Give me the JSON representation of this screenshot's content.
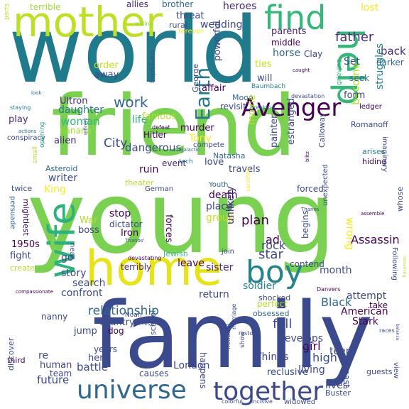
{
  "colors": {
    "viridis": [
      "#440154",
      "#482878",
      "#3e4989",
      "#31688e",
      "#26828e",
      "#1f9e89",
      "#35b779",
      "#6ece58",
      "#b5de2b",
      "#fde725"
    ]
  },
  "words": [
    {
      "text": "young",
      "color": "#7ad151"
    },
    {
      "text": "friend",
      "color": "#7ad151"
    },
    {
      "text": "world",
      "color": "#1f7a8c"
    },
    {
      "text": "family",
      "color": "#3b4a8c"
    },
    {
      "text": "home",
      "color": "#e6e419"
    },
    {
      "text": "mother",
      "color": "#bddf26"
    },
    {
      "text": "help",
      "color": "#35b779"
    },
    {
      "text": "wife",
      "color": "#2db27d"
    },
    {
      "text": "find",
      "color": "#35b779"
    },
    {
      "text": "boy",
      "color": "#26828e"
    },
    {
      "text": "universe",
      "color": "#31688e"
    },
    {
      "text": "together",
      "color": "#3e4989"
    },
    {
      "text": "Avenger",
      "color": "#440154"
    },
    {
      "text": "Earth",
      "color": "#2a788e"
    },
    {
      "text": "relationship",
      "color": "#31688e"
    },
    {
      "text": "father",
      "color": "#472d7b"
    },
    {
      "text": "heroes",
      "color": "#482878"
    },
    {
      "text": "back",
      "color": "#482878"
    },
    {
      "text": "become",
      "color": "#b5de2b"
    },
    {
      "text": "struggles",
      "color": "#26828e"
    },
    {
      "text": "terrible",
      "color": "#a0da39"
    },
    {
      "text": "allies",
      "color": "#482878"
    },
    {
      "text": "brother",
      "color": "#31688e"
    },
    {
      "text": "threat",
      "color": "#3e4989"
    },
    {
      "text": "lost",
      "color": "#fde725"
    },
    {
      "text": "darker",
      "color": "#31688e"
    },
    {
      "text": "parts",
      "color": "#c2df23"
    },
    {
      "text": "willing",
      "color": "#8fd744"
    },
    {
      "text": "rural",
      "color": "#3e4989"
    },
    {
      "text": "forever",
      "color": "#fde725"
    },
    {
      "text": "wedding",
      "color": "#3e4989"
    },
    {
      "text": "parents",
      "color": "#482878"
    },
    {
      "text": "middle",
      "color": "#440154"
    },
    {
      "text": "Set",
      "color": "#3e4989"
    },
    {
      "text": "seek",
      "color": "#31688e"
    },
    {
      "text": "horse",
      "color": "#31688e"
    },
    {
      "text": "powerful",
      "color": "#3e4989"
    },
    {
      "text": "life",
      "color": "#2db27d"
    },
    {
      "text": "ties",
      "color": "#c8e020"
    },
    {
      "text": "will",
      "color": "#3e4989"
    },
    {
      "text": "affair",
      "color": "#440154"
    },
    {
      "text": "order",
      "color": "#c8e020"
    },
    {
      "text": "away",
      "color": "#3e4989"
    },
    {
      "text": "caught",
      "color": "#440154"
    },
    {
      "text": "Clay",
      "color": "#3e4989"
    },
    {
      "text": "grieving",
      "color": "#35b779"
    },
    {
      "text": "Baumbach",
      "color": "#26828e"
    },
    {
      "text": "form",
      "color": "#3e4989"
    },
    {
      "text": "ledger",
      "color": "#440154"
    },
    {
      "text": "look",
      "color": "#31688e"
    },
    {
      "text": "stargazing",
      "color": "#3e4989"
    },
    {
      "text": "George",
      "color": "#3e4989"
    },
    {
      "text": "Moon",
      "color": "#31688e"
    },
    {
      "text": "devastation",
      "color": "#3e4989"
    },
    {
      "text": "breaking",
      "color": "#2a788e"
    },
    {
      "text": "revisit",
      "color": "#3e4989"
    },
    {
      "text": "Ultron",
      "color": "#482878"
    },
    {
      "text": "work",
      "color": "#31688e"
    },
    {
      "text": "daughter",
      "color": "#2a788e"
    },
    {
      "text": "famous",
      "color": "#b5de2b"
    },
    {
      "text": "woman",
      "color": "#35b779"
    },
    {
      "text": "banana",
      "color": "#a0da39"
    },
    {
      "text": "alien",
      "color": "#482878"
    },
    {
      "text": "City",
      "color": "#3e4989"
    },
    {
      "text": "dangerous",
      "color": "#3e4989"
    },
    {
      "text": "murder",
      "color": "#440154"
    },
    {
      "text": "Tony",
      "color": "#fde725"
    },
    {
      "text": "compete",
      "color": "#3e4989"
    },
    {
      "text": "galactic",
      "color": "#31688e"
    },
    {
      "text": "tech",
      "color": "#26828e"
    },
    {
      "text": "event",
      "color": "#482878"
    },
    {
      "text": "Natasha",
      "color": "#31688e"
    },
    {
      "text": "love",
      "color": "#3e4989"
    },
    {
      "text": "movie",
      "color": "#b5de2b"
    },
    {
      "text": "travels",
      "color": "#3e4989"
    },
    {
      "text": "Romanoff",
      "color": "#3e4989"
    },
    {
      "text": "arises",
      "color": "#26828e"
    },
    {
      "text": "hiding",
      "color": "#440154"
    },
    {
      "text": "imaginary",
      "color": "#3e4989"
    },
    {
      "text": "staying",
      "color": "#2a788e"
    },
    {
      "text": "play",
      "color": "#482878"
    },
    {
      "text": "actions",
      "color": "#31688e"
    },
    {
      "text": "conspiracy",
      "color": "#3e4989"
    },
    {
      "text": "defeat",
      "color": "#440154"
    },
    {
      "text": "Hitler",
      "color": "#440154"
    },
    {
      "text": "Infinity",
      "color": "#3e4989"
    },
    {
      "text": "small",
      "color": "#b5de2b"
    },
    {
      "text": "opening",
      "color": "#1f9e89"
    },
    {
      "text": "Asteroid",
      "color": "#31688e"
    },
    {
      "text": "writer",
      "color": "#3e4989"
    },
    {
      "text": "ruin",
      "color": "#440154"
    },
    {
      "text": "theater",
      "color": "#b5de2b"
    },
    {
      "text": "painter",
      "color": "#3e4989"
    },
    {
      "text": "estranged",
      "color": "#3e4989"
    },
    {
      "text": "blitz",
      "color": "#440154"
    },
    {
      "text": "Calloway",
      "color": "#3e4989"
    },
    {
      "text": "King",
      "color": "#fde725"
    },
    {
      "text": "twice",
      "color": "#3e4989"
    },
    {
      "text": "German",
      "color": "#3e4989"
    },
    {
      "text": "Youth",
      "color": "#31688e"
    },
    {
      "text": "forced",
      "color": "#3e4989"
    },
    {
      "text": "persuade",
      "color": "#31688e"
    },
    {
      "text": "mightiest",
      "color": "#440154"
    },
    {
      "text": "death",
      "color": "#440154"
    },
    {
      "text": "place",
      "color": "#3e4989"
    },
    {
      "text": "group",
      "color": "#c8e020"
    },
    {
      "text": "Thanos",
      "color": "#3e4989"
    },
    {
      "text": "Thanos'",
      "color": "#3e4989"
    },
    {
      "text": "sacrifice",
      "color": "#fde725"
    },
    {
      "text": "unexpected",
      "color": "#3e4989"
    },
    {
      "text": "assemble",
      "color": "#440154"
    },
    {
      "text": "War",
      "color": "#b5de2b"
    },
    {
      "text": "boss",
      "color": "#3e4989"
    },
    {
      "text": "stop",
      "color": "#440154"
    },
    {
      "text": "dictator",
      "color": "#3e4989"
    },
    {
      "text": "Iron",
      "color": "#440154"
    },
    {
      "text": "forces",
      "color": "#440154"
    },
    {
      "text": "plan",
      "color": "#440154"
    },
    {
      "text": "unlikely",
      "color": "#482878"
    },
    {
      "text": "ad",
      "color": "#440154"
    },
    {
      "text": "rock",
      "color": "#3e4989"
    },
    {
      "text": "star",
      "color": "#3e4989"
    },
    {
      "text": "begins",
      "color": "#3e4989"
    },
    {
      "text": "wrong",
      "color": "#fde725"
    },
    {
      "text": "whose",
      "color": "#3e4989"
    },
    {
      "text": "Assassin",
      "color": "#440154"
    },
    {
      "text": "1950s",
      "color": "#440154"
    },
    {
      "text": "fight",
      "color": "#3e4989"
    },
    {
      "text": "create",
      "color": "#b5de2b"
    },
    {
      "text": "join",
      "color": "#3e4989"
    },
    {
      "text": "near",
      "color": "#3e4989"
    },
    {
      "text": "Jewish",
      "color": "#35b779"
    },
    {
      "text": "devastating",
      "color": "#440154"
    },
    {
      "text": "leave",
      "color": "#440154"
    },
    {
      "text": "sister",
      "color": "#482878"
    },
    {
      "text": "contend",
      "color": "#3e4989"
    },
    {
      "text": "month",
      "color": "#3e4989"
    },
    {
      "text": "go",
      "color": "#3e4989"
    },
    {
      "text": "story",
      "color": "#3e4989"
    },
    {
      "text": "terribly",
      "color": "#482878"
    },
    {
      "text": "soldier",
      "color": "#26828e"
    },
    {
      "text": "Following",
      "color": "#3e4989"
    },
    {
      "text": "remaining",
      "color": "#b5de2b"
    },
    {
      "text": "compassionate",
      "color": "#440154"
    },
    {
      "text": "confront",
      "color": "#3e4989"
    },
    {
      "text": "search",
      "color": "#3e4989"
    },
    {
      "text": "Danvers",
      "color": "#440154"
    },
    {
      "text": "attempt",
      "color": "#3e4989"
    },
    {
      "text": "nanny",
      "color": "#3e4989"
    },
    {
      "text": "return",
      "color": "#3e4989"
    },
    {
      "text": "shocked",
      "color": "#3e4989"
    },
    {
      "text": "perfect",
      "color": "#b5de2b"
    },
    {
      "text": "Black",
      "color": "#31688e"
    },
    {
      "text": "American",
      "color": "#440154"
    },
    {
      "text": "take",
      "color": "#440154"
    },
    {
      "text": "Stark",
      "color": "#440154"
    },
    {
      "text": "obsessed",
      "color": "#31688e"
    },
    {
      "text": "fall",
      "color": "#3e4989"
    },
    {
      "text": "Noah",
      "color": "#3e4989"
    },
    {
      "text": "reverse",
      "color": "#3e4989"
    },
    {
      "text": "country",
      "color": "#3e4989"
    },
    {
      "text": "dog",
      "color": "#440154"
    },
    {
      "text": "jump",
      "color": "#3e4989"
    },
    {
      "text": "school",
      "color": "#3e4989"
    },
    {
      "text": "develops",
      "color": "#3e4989"
    },
    {
      "text": "marriage",
      "color": "#3e4989"
    },
    {
      "text": "restore",
      "color": "#3e4989"
    },
    {
      "text": "races",
      "color": "#3e4989"
    },
    {
      "text": "balance",
      "color": "#3e4989"
    },
    {
      "text": "girl",
      "color": "#440154"
    },
    {
      "text": "teen",
      "color": "#3e4989"
    },
    {
      "text": "high",
      "color": "#3e4989"
    },
    {
      "text": "goes",
      "color": "#3e4989"
    },
    {
      "text": "Things",
      "color": "#3e4989"
    },
    {
      "text": "years",
      "color": "#3e4989"
    },
    {
      "text": "living",
      "color": "#3e4989"
    },
    {
      "text": "re",
      "color": "#3e4989"
    },
    {
      "text": "hero",
      "color": "#3e4989"
    },
    {
      "text": "third",
      "color": "#440154"
    },
    {
      "text": "discover",
      "color": "#3e4989"
    },
    {
      "text": "human",
      "color": "#3e4989"
    },
    {
      "text": "battle",
      "color": "#3e4989"
    },
    {
      "text": "team",
      "color": "#3e4989"
    },
    {
      "text": "future",
      "color": "#3e4989"
    },
    {
      "text": "causes",
      "color": "#3e4989"
    },
    {
      "text": "London",
      "color": "#3e4989"
    },
    {
      "text": "happens",
      "color": "#3e4989"
    },
    {
      "text": "fictional",
      "color": "#3e4989"
    },
    {
      "text": "colorful",
      "color": "#3e4989"
    },
    {
      "text": "incisive",
      "color": "#3e4989"
    },
    {
      "text": "widowed",
      "color": "#3e4989"
    },
    {
      "text": "reclusive",
      "color": "#3e4989"
    },
    {
      "text": "lives",
      "color": "#3e4989"
    },
    {
      "text": "past",
      "color": "#3e4989"
    },
    {
      "text": "guests",
      "color": "#3e4989"
    },
    {
      "text": "Buster",
      "color": "#3e4989"
    },
    {
      "text": "view",
      "color": "#3e4989"
    },
    {
      "text": "show",
      "color": "#3e4989"
    }
  ]
}
